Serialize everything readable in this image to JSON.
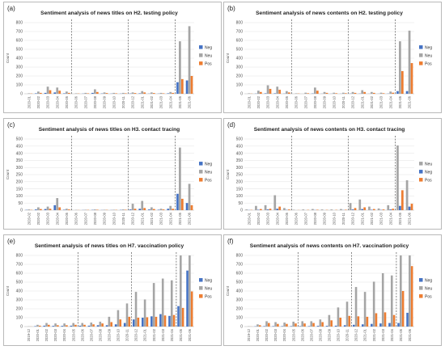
{
  "colors": {
    "Neg": "#4472c4",
    "Neu": "#a5a5a5",
    "Pos": "#ed7d31"
  },
  "chart_data": [
    {
      "panel_label": "(a)",
      "type": "bar",
      "title": "Sentiment analysis of news titles on H2. testing policy",
      "ylabel": "Count",
      "ylim": [
        0,
        800
      ],
      "yticks": [
        "0",
        "100",
        "200",
        "300",
        "400",
        "500",
        "600",
        "700",
        "800"
      ],
      "grid": true,
      "legend_position": "right",
      "categories": [
        "2020-01",
        "2020-02",
        "2020-03",
        "2020-04",
        "2020-05",
        "2020-06",
        "2020-07",
        "2020-08",
        "2020-09",
        "2020-10",
        "2020-11",
        "2020-12",
        "2021-01",
        "2021-02",
        "2021-03",
        "2021-04",
        "2021-05",
        "2021-06"
      ],
      "dividers_after": [
        4,
        10,
        15
      ],
      "series": [
        {
          "name": "Neg",
          "values": [
            0,
            5,
            10,
            15,
            5,
            0,
            2,
            10,
            3,
            2,
            2,
            3,
            5,
            2,
            2,
            5,
            130,
            150
          ]
        },
        {
          "name": "Neu",
          "values": [
            5,
            25,
            80,
            70,
            25,
            5,
            10,
            50,
            15,
            10,
            10,
            15,
            30,
            15,
            10,
            20,
            590,
            760
          ]
        },
        {
          "name": "Pos",
          "values": [
            3,
            10,
            40,
            35,
            10,
            3,
            5,
            20,
            8,
            5,
            5,
            8,
            15,
            8,
            5,
            10,
            165,
            200
          ]
        }
      ]
    },
    {
      "panel_label": "(b)",
      "type": "bar",
      "title": "Sentiment analysis of news contents on H2. testing policy",
      "ylabel": "Count",
      "ylim": [
        0,
        800
      ],
      "yticks": [
        "0",
        "100",
        "200",
        "300",
        "400",
        "500",
        "600",
        "700",
        "800"
      ],
      "grid": true,
      "legend_position": "right",
      "categories": [
        "2020-01",
        "2020-02",
        "2020-03",
        "2020-04",
        "2020-05",
        "2020-06",
        "2020-07",
        "2020-08",
        "2020-09",
        "2020-10",
        "2020-11",
        "2020-12",
        "2021-01",
        "2021-02",
        "2021-03",
        "2021-04",
        "2021-05",
        "2021-06"
      ],
      "dividers_after": [
        4,
        10,
        15
      ],
      "series": [
        {
          "name": "Neg",
          "values": [
            0,
            2,
            5,
            5,
            2,
            0,
            0,
            3,
            1,
            1,
            1,
            2,
            2,
            1,
            1,
            2,
            30,
            30
          ]
        },
        {
          "name": "Neu",
          "values": [
            5,
            35,
            95,
            80,
            30,
            5,
            12,
            70,
            20,
            12,
            12,
            20,
            40,
            20,
            12,
            25,
            590,
            710
          ]
        },
        {
          "name": "Pos",
          "values": [
            2,
            20,
            55,
            45,
            15,
            3,
            6,
            35,
            10,
            6,
            6,
            10,
            20,
            10,
            6,
            12,
            255,
            345
          ]
        }
      ]
    },
    {
      "panel_label": "(c)",
      "type": "bar",
      "title": "Sentiment analysis of news titles on H3. contact tracing",
      "ylabel": "Count",
      "ylim": [
        0,
        500
      ],
      "yticks": [
        "0",
        "50",
        "100",
        "150",
        "200",
        "250",
        "300",
        "350",
        "400",
        "450",
        "500"
      ],
      "grid": true,
      "legend_position": "right",
      "categories": [
        "2020-02",
        "2020-02",
        "2020-03",
        "2020-04",
        "2020-05",
        "2020-06",
        "2020-07",
        "2020-08",
        "2020-09",
        "2020-10",
        "2020-11",
        "2020-12",
        "2021-01",
        "2021-02",
        "2021-03",
        "2021-04",
        "2021-05",
        "2021-06"
      ],
      "dividers_after": [
        4,
        10,
        15
      ],
      "series": [
        {
          "name": "Neg",
          "values": [
            2,
            5,
            8,
            35,
            3,
            0,
            1,
            2,
            1,
            1,
            2,
            5,
            10,
            5,
            3,
            10,
            115,
            50
          ]
        },
        {
          "name": "Neu",
          "values": [
            5,
            20,
            25,
            85,
            10,
            2,
            3,
            5,
            3,
            3,
            5,
            45,
            65,
            20,
            10,
            30,
            440,
            185
          ]
        },
        {
          "name": "Pos",
          "values": [
            2,
            8,
            10,
            20,
            5,
            1,
            2,
            3,
            2,
            2,
            3,
            10,
            15,
            8,
            5,
            10,
            80,
            35
          ]
        }
      ]
    },
    {
      "panel_label": "(d)",
      "type": "bar",
      "title": "Sentiment analysis of news contents on H3. contact tracing",
      "ylabel": "Count",
      "ylim": [
        0,
        500
      ],
      "yticks": [
        "0",
        "50",
        "100",
        "150",
        "200",
        "250",
        "300",
        "350",
        "400",
        "450",
        "500"
      ],
      "grid": true,
      "legend_position": "right",
      "categories": [
        "2020-01",
        "2020-02",
        "2020-03",
        "2020-04",
        "2020-05",
        "2020-06",
        "2020-07",
        "2020-08",
        "2020-09",
        "2020-10",
        "2020-11",
        "2020-12",
        "2021-01",
        "2021-02",
        "2021-03",
        "2021-04",
        "2021-05",
        "2021-06"
      ],
      "dividers_after": [
        4,
        10,
        15
      ],
      "series": [
        {
          "name": "Neu",
          "values": [
            5,
            30,
            35,
            105,
            15,
            3,
            5,
            8,
            5,
            5,
            8,
            50,
            75,
            25,
            12,
            35,
            455,
            210
          ]
        },
        {
          "name": "Neg",
          "values": [
            1,
            3,
            5,
            10,
            2,
            0,
            0,
            1,
            0,
            0,
            1,
            5,
            8,
            3,
            2,
            5,
            30,
            25
          ]
        },
        {
          "name": "Pos",
          "values": [
            2,
            8,
            10,
            25,
            5,
            1,
            2,
            3,
            2,
            2,
            3,
            15,
            20,
            8,
            5,
            10,
            140,
            45
          ]
        }
      ]
    },
    {
      "panel_label": "(e)",
      "type": "bar",
      "title": "Sentiment analysis of news titles on H7. vaccination policy",
      "ylabel": "Count",
      "ylim": [
        0,
        800
      ],
      "yticks": [
        "0",
        "100",
        "200",
        "300",
        "400",
        "500",
        "600",
        "700",
        "800"
      ],
      "grid": true,
      "legend_position": "right",
      "categories": [
        "2019-12",
        "2020-01",
        "2020-02",
        "2020-03",
        "2020-04",
        "2020-05",
        "2020-06",
        "2020-07",
        "2020-08",
        "2020-09",
        "2020-10",
        "2020-11",
        "2020-12",
        "2021-01",
        "2021-02",
        "2021-03",
        "2021-04",
        "2021-05",
        "2021-06"
      ],
      "dividers_after": [
        5,
        11,
        16
      ],
      "series": [
        {
          "name": "Neg",
          "values": [
            0,
            5,
            10,
            8,
            8,
            10,
            10,
            10,
            15,
            15,
            25,
            40,
            80,
            100,
            115,
            140,
            120,
            230,
            630
          ]
        },
        {
          "name": "Neu",
          "values": [
            2,
            20,
            40,
            35,
            35,
            40,
            40,
            45,
            55,
            110,
            185,
            260,
            390,
            305,
            490,
            540,
            520,
            800,
            800
          ]
        },
        {
          "name": "Pos",
          "values": [
            1,
            10,
            20,
            15,
            15,
            20,
            20,
            25,
            35,
            50,
            80,
            110,
            100,
            105,
            110,
            125,
            130,
            210,
            395
          ]
        }
      ]
    },
    {
      "panel_label": "(f)",
      "type": "bar",
      "title": "Sentiment analysis of news contents on H7. vaccination policy",
      "ylabel": "Count",
      "ylim": [
        0,
        800
      ],
      "yticks": [
        "0",
        "100",
        "200",
        "300",
        "400",
        "500",
        "600",
        "700",
        "800"
      ],
      "grid": true,
      "legend_position": "right",
      "categories": [
        "2019-12",
        "2020-01",
        "2020-02",
        "2020-03",
        "2020-04",
        "2020-05",
        "2020-06",
        "2020-07",
        "2020-08",
        "2020-09",
        "2020-10",
        "2020-11",
        "2020-12",
        "2021-01",
        "2021-02",
        "2021-03",
        "2021-04",
        "2021-05",
        "2021-06"
      ],
      "dividers_after": [
        5,
        11,
        16
      ],
      "series": [
        {
          "name": "Neg",
          "values": [
            0,
            3,
            5,
            5,
            5,
            5,
            5,
            5,
            8,
            8,
            10,
            15,
            20,
            25,
            30,
            35,
            40,
            40,
            155
          ]
        },
        {
          "name": "Neu",
          "values": [
            3,
            25,
            60,
            50,
            45,
            55,
            60,
            60,
            80,
            130,
            215,
            280,
            445,
            390,
            505,
            600,
            575,
            800,
            800
          ]
        },
        {
          "name": "Pos",
          "values": [
            1,
            15,
            40,
            30,
            30,
            35,
            35,
            40,
            50,
            70,
            100,
            120,
            115,
            110,
            150,
            160,
            130,
            400,
            680
          ]
        }
      ]
    }
  ]
}
